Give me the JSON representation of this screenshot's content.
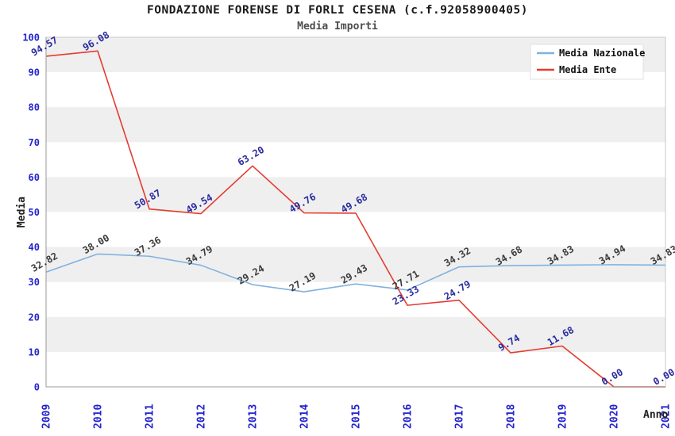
{
  "chart_data": {
    "type": "line",
    "title": "FONDAZIONE FORENSE DI FORLI CESENA (c.f.92058900405)",
    "subtitle": "Media Importi",
    "xlabel": "Anno",
    "ylabel": "Media",
    "ylim": [
      0,
      100
    ],
    "ytick_step": 10,
    "grid": "alternating-horizontal-bands",
    "legend_position": "top-right",
    "categories": [
      "2009",
      "2010",
      "2011",
      "2012",
      "2013",
      "2014",
      "2015",
      "2016",
      "2017",
      "2018",
      "2019",
      "2020",
      "2021"
    ],
    "series": [
      {
        "name": "Media Nazionale",
        "color": "#7FB2E0",
        "label_color": "#3B3B3B",
        "values": [
          32.82,
          38.0,
          37.36,
          34.79,
          29.24,
          27.19,
          29.43,
          27.71,
          34.32,
          34.68,
          34.83,
          34.94,
          34.83
        ]
      },
      {
        "name": "Media Ente",
        "color": "#E43C31",
        "label_color": "#2B2BA0",
        "values": [
          94.57,
          96.08,
          50.87,
          49.54,
          63.2,
          49.76,
          49.68,
          23.33,
          24.79,
          9.74,
          11.68,
          0.0,
          0.0
        ]
      }
    ],
    "colors": {
      "tick_label": "#2424CF",
      "band": "#EFEFEF",
      "plot_border": "#C8C8C8",
      "axis_line": "#9A9A9A",
      "axis_title": "#222222",
      "legend_text": "#111111",
      "legend_border": "#E2E2E2",
      "legend_bg": "#FFFFFF"
    }
  }
}
